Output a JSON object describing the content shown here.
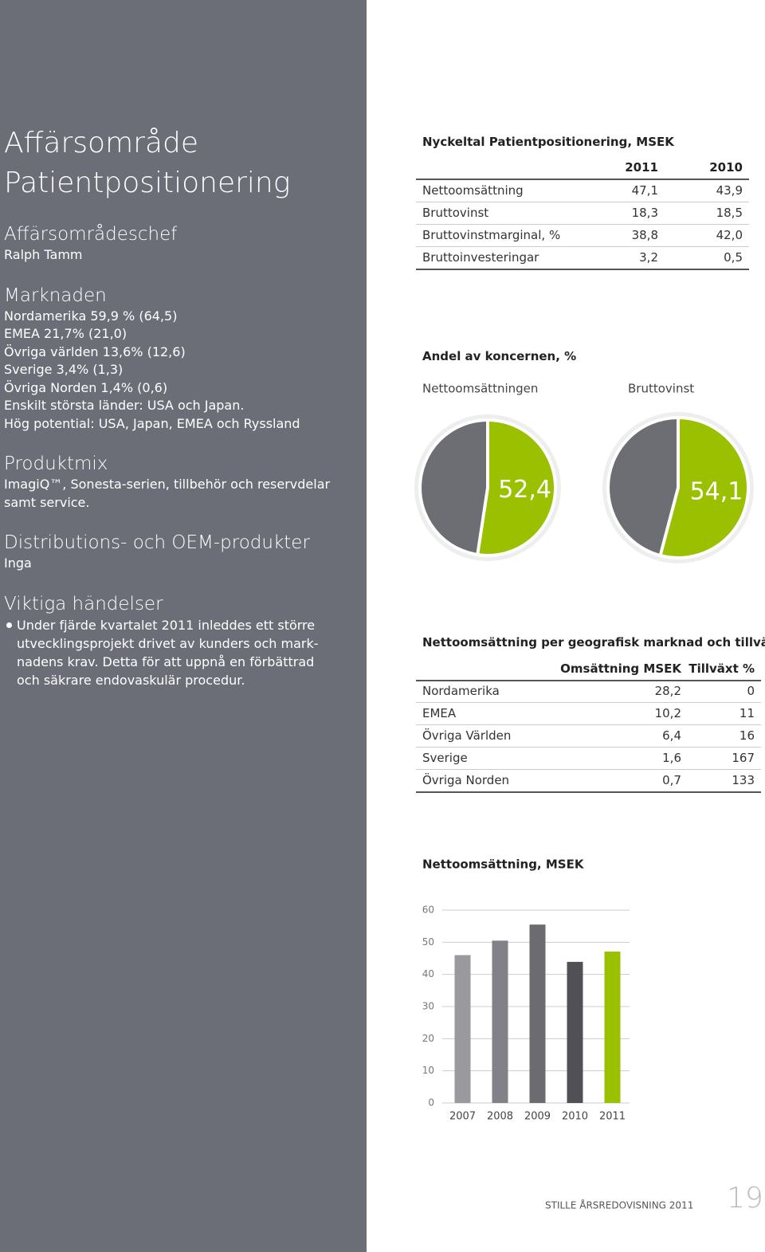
{
  "sidebar": {
    "title": [
      "Affärsområde",
      "Patientpositionering"
    ],
    "sections": [
      {
        "heading": "Affärsområdeschef",
        "lines": [
          "Ralph Tamm"
        ]
      },
      {
        "heading": "Marknaden",
        "lines": [
          "Nordamerika 59,9 % (64,5)",
          "EMEA 21,7% (21,0)",
          "Övriga världen  13,6% (12,6)",
          "Sverige 3,4% (1,3)",
          "Övriga Norden 1,4% (0,6)",
          "Enskilt största länder: USA och Japan.",
          "Hög potential: USA, Japan, EMEA och Ryssland"
        ]
      },
      {
        "heading": "Produktmix",
        "lines": [
          "ImagiQ™, Sonesta-serien, tillbehör och reservdelar",
          "samt service."
        ]
      },
      {
        "heading": "Distributions- och OEM-produkter",
        "lines": [
          "Inga"
        ]
      },
      {
        "heading": "Viktiga händelser",
        "bullet_lines": [
          "Under fjärde kvartalet 2011 inleddes ett större",
          "utvecklingsprojekt drivet av kunders och mark-",
          "nadens krav. Detta för att uppnå en förbättrad",
          "och säkrare endovaskulär procedur."
        ]
      }
    ]
  },
  "key_figures": {
    "title": "Nyckeltal Patientpositionering, MSEK",
    "columns": [
      "2011",
      "2010"
    ],
    "rows": [
      [
        "Nettoomsättning",
        "47,1",
        "43,9"
      ],
      [
        "Bruttovinst",
        "18,3",
        "18,5"
      ],
      [
        "Bruttovinstmarginal, %",
        "38,8",
        "42,0"
      ],
      [
        "Bruttoinvesteringar",
        "3,2",
        "0,5"
      ]
    ]
  },
  "pie_section": {
    "title": "Andel av koncernen, %"
  },
  "geo_table": {
    "title": "Nettoomsättning per geografisk marknad och tillväxt",
    "columns": [
      "Omsättning  MSEK",
      "Tillväxt %"
    ],
    "rows": [
      [
        "Nordamerika",
        "28,2",
        "0"
      ],
      [
        "EMEA",
        "10,2",
        "11"
      ],
      [
        "Övriga Världen",
        "6,4",
        "16"
      ],
      [
        "Sverige",
        "1,6",
        "167"
      ],
      [
        "Övriga Norden",
        "0,7",
        "133"
      ]
    ]
  },
  "chart_data": [
    {
      "type": "pie",
      "title": "Nettoomsättningen",
      "values": [
        52.4
      ],
      "value_labels": [
        "52,4"
      ],
      "color": "#9bc000",
      "rest_color": "#6d6e73"
    },
    {
      "type": "pie",
      "title": "Bruttovinst",
      "values": [
        54.1
      ],
      "value_labels": [
        "54,1"
      ],
      "color": "#9bc000",
      "rest_color": "#6d6e73"
    },
    {
      "type": "bar",
      "title": "Nettoomsättning, MSEK",
      "categories": [
        "2007",
        "2008",
        "2009",
        "2010",
        "2011"
      ],
      "values": [
        46,
        50.5,
        55.5,
        43.9,
        47.1
      ],
      "colors": [
        "#9a9a9e",
        "#818187",
        "#6b6b70",
        "#505055",
        "#9bc000"
      ],
      "ylim": [
        0,
        60
      ],
      "yticks": [
        0,
        10,
        20,
        30,
        40,
        50,
        60
      ],
      "grid": true
    }
  ],
  "footer": {
    "text": "STILLE ÅRSREDOVISNING 2011",
    "page": "19"
  }
}
